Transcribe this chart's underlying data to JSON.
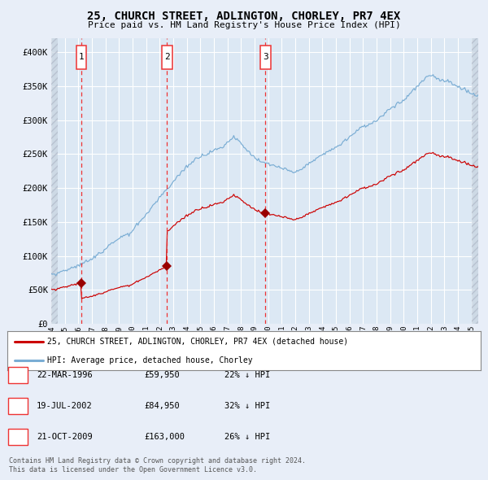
{
  "title1": "25, CHURCH STREET, ADLINGTON, CHORLEY, PR7 4EX",
  "title2": "Price paid vs. HM Land Registry's House Price Index (HPI)",
  "legend_line1": "25, CHURCH STREET, ADLINGTON, CHORLEY, PR7 4EX (detached house)",
  "legend_line2": "HPI: Average price, detached house, Chorley",
  "table": [
    {
      "num": 1,
      "date": "22-MAR-1996",
      "price": "£59,950",
      "pct": "22% ↓ HPI"
    },
    {
      "num": 2,
      "date": "19-JUL-2002",
      "price": "£84,950",
      "pct": "32% ↓ HPI"
    },
    {
      "num": 3,
      "date": "21-OCT-2009",
      "price": "£163,000",
      "pct": "26% ↓ HPI"
    }
  ],
  "purchases": [
    {
      "date_num": 1996.22,
      "price": 59950
    },
    {
      "date_num": 2002.54,
      "price": 84950
    },
    {
      "date_num": 2009.8,
      "price": 163000
    }
  ],
  "vlines": [
    1996.22,
    2002.54,
    2009.8
  ],
  "footnote1": "Contains HM Land Registry data © Crown copyright and database right 2024.",
  "footnote2": "This data is licensed under the Open Government Licence v3.0.",
  "hpi_color": "#7aadd4",
  "price_color": "#cc0000",
  "vline_color": "#ee3333",
  "bg_color": "#e8eef8",
  "plot_bg": "#dce8f4",
  "grid_color": "#ffffff",
  "ylim": [
    0,
    420000
  ],
  "xlim": [
    1994,
    2025.5
  ],
  "yticks": [
    0,
    50000,
    100000,
    150000,
    200000,
    250000,
    300000,
    350000,
    400000
  ]
}
